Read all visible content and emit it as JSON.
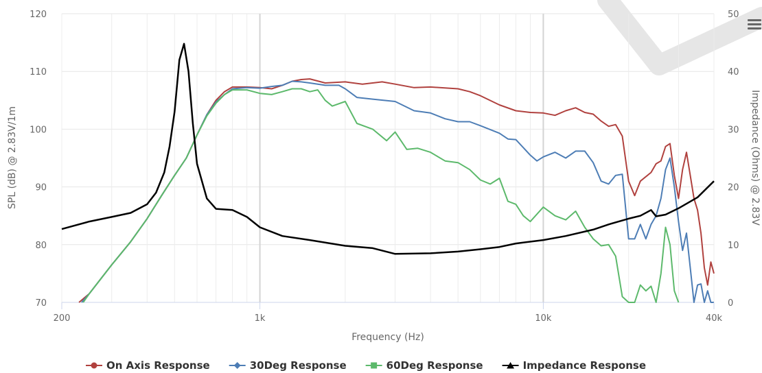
{
  "chart_data": {
    "type": "line",
    "xlabel": "Frequency (Hz)",
    "ylabel": "SPL (dB) @ 2.83V/1m",
    "y2label": "Impedance (Ohms) @ 2.83V",
    "x_scale": "log",
    "xlim": [
      200,
      40000
    ],
    "ylim": [
      70,
      120
    ],
    "y2lim": [
      0,
      50
    ],
    "x_ticks": [
      {
        "value": 200,
        "label": "200"
      },
      {
        "value": 1000,
        "label": "1k"
      },
      {
        "value": 10000,
        "label": "10k"
      },
      {
        "value": 40000,
        "label": "40k"
      }
    ],
    "y_ticks": [
      {
        "value": 70,
        "label": "70"
      },
      {
        "value": 80,
        "label": "80"
      },
      {
        "value": 90,
        "label": "90"
      },
      {
        "value": 100,
        "label": "100"
      },
      {
        "value": 110,
        "label": "110"
      },
      {
        "value": 120,
        "label": "120"
      }
    ],
    "y2_ticks": [
      {
        "value": 0,
        "label": "0"
      },
      {
        "value": 10,
        "label": "10"
      },
      {
        "value": 20,
        "label": "20"
      },
      {
        "value": 30,
        "label": "30"
      },
      {
        "value": 40,
        "label": "40"
      },
      {
        "value": 50,
        "label": "50"
      }
    ],
    "grid": true,
    "legend_position": "bottom-center",
    "series": [
      {
        "name": "On Axis Response",
        "color": "#b0413e",
        "axis": "left",
        "marker": "circle",
        "points": [
          [
            230,
            70
          ],
          [
            250,
            71.5
          ],
          [
            300,
            76.5
          ],
          [
            350,
            80.5
          ],
          [
            400,
            84.5
          ],
          [
            450,
            88.5
          ],
          [
            500,
            92
          ],
          [
            550,
            95
          ],
          [
            600,
            99
          ],
          [
            650,
            102.5
          ],
          [
            700,
            105
          ],
          [
            750,
            106.5
          ],
          [
            800,
            107.3
          ],
          [
            900,
            107.3
          ],
          [
            1000,
            107.2
          ],
          [
            1100,
            107
          ],
          [
            1200,
            107.6
          ],
          [
            1300,
            108.3
          ],
          [
            1400,
            108.6
          ],
          [
            1500,
            108.7
          ],
          [
            1700,
            108
          ],
          [
            2000,
            108.2
          ],
          [
            2300,
            107.8
          ],
          [
            2700,
            108.2
          ],
          [
            3000,
            107.8
          ],
          [
            3500,
            107.2
          ],
          [
            4000,
            107.3
          ],
          [
            5000,
            107
          ],
          [
            5500,
            106.5
          ],
          [
            6000,
            105.8
          ],
          [
            7000,
            104.2
          ],
          [
            8000,
            103.2
          ],
          [
            9000,
            102.9
          ],
          [
            10000,
            102.8
          ],
          [
            11000,
            102.4
          ],
          [
            12000,
            103.2
          ],
          [
            13000,
            103.7
          ],
          [
            14000,
            102.9
          ],
          [
            15000,
            102.6
          ],
          [
            16000,
            101.4
          ],
          [
            17000,
            100.5
          ],
          [
            18000,
            100.8
          ],
          [
            19000,
            98.8
          ],
          [
            20000,
            91
          ],
          [
            21000,
            88.5
          ],
          [
            22000,
            91
          ],
          [
            24000,
            92.5
          ],
          [
            25000,
            94
          ],
          [
            26000,
            94.5
          ],
          [
            27000,
            97
          ],
          [
            28000,
            97.5
          ],
          [
            29000,
            92
          ],
          [
            30000,
            88
          ],
          [
            31000,
            93
          ],
          [
            32000,
            96
          ],
          [
            33000,
            92
          ],
          [
            34000,
            88
          ],
          [
            35000,
            86
          ],
          [
            36000,
            82
          ],
          [
            37000,
            76
          ],
          [
            38000,
            73
          ],
          [
            39000,
            77
          ],
          [
            40000,
            75
          ]
        ]
      },
      {
        "name": "30Deg Response",
        "color": "#4d7db5",
        "axis": "left",
        "marker": "diamond",
        "points": [
          [
            235,
            70
          ],
          [
            250,
            71.5
          ],
          [
            300,
            76.5
          ],
          [
            350,
            80.5
          ],
          [
            400,
            84.5
          ],
          [
            450,
            88.5
          ],
          [
            500,
            92
          ],
          [
            550,
            95
          ],
          [
            600,
            99
          ],
          [
            650,
            102.5
          ],
          [
            700,
            104.7
          ],
          [
            750,
            106
          ],
          [
            800,
            107
          ],
          [
            900,
            107.2
          ],
          [
            1000,
            107.1
          ],
          [
            1100,
            107.4
          ],
          [
            1200,
            107.6
          ],
          [
            1300,
            108.3
          ],
          [
            1400,
            108.2
          ],
          [
            1500,
            108
          ],
          [
            1700,
            107.6
          ],
          [
            1900,
            107.6
          ],
          [
            2000,
            107
          ],
          [
            2200,
            105.5
          ],
          [
            2500,
            105.2
          ],
          [
            3000,
            104.8
          ],
          [
            3500,
            103.2
          ],
          [
            4000,
            102.8
          ],
          [
            4500,
            101.8
          ],
          [
            5000,
            101.3
          ],
          [
            5500,
            101.3
          ],
          [
            6000,
            100.6
          ],
          [
            7000,
            99.3
          ],
          [
            7500,
            98.3
          ],
          [
            8000,
            98.2
          ],
          [
            9000,
            95.5
          ],
          [
            9500,
            94.5
          ],
          [
            10000,
            95.2
          ],
          [
            11000,
            96
          ],
          [
            12000,
            95
          ],
          [
            13000,
            96.2
          ],
          [
            14000,
            96.2
          ],
          [
            15000,
            94.2
          ],
          [
            16000,
            91
          ],
          [
            17000,
            90.5
          ],
          [
            18000,
            92
          ],
          [
            19000,
            92.2
          ],
          [
            20000,
            81
          ],
          [
            21000,
            81
          ],
          [
            22000,
            83.5
          ],
          [
            23000,
            81
          ],
          [
            24000,
            83.5
          ],
          [
            25000,
            85
          ],
          [
            26000,
            88
          ],
          [
            27000,
            93
          ],
          [
            28000,
            95
          ],
          [
            29000,
            90
          ],
          [
            30000,
            84
          ],
          [
            31000,
            79
          ],
          [
            32000,
            82
          ],
          [
            33000,
            76
          ],
          [
            34000,
            70
          ],
          [
            35000,
            73
          ],
          [
            36000,
            73.2
          ],
          [
            37000,
            70
          ],
          [
            38000,
            72
          ],
          [
            39000,
            70
          ],
          [
            40000,
            70
          ]
        ]
      },
      {
        "name": "60Deg Response",
        "color": "#5cb96b",
        "axis": "left",
        "marker": "square",
        "points": [
          [
            238,
            70
          ],
          [
            250,
            71.5
          ],
          [
            300,
            76.5
          ],
          [
            350,
            80.5
          ],
          [
            400,
            84.5
          ],
          [
            450,
            88.5
          ],
          [
            500,
            92
          ],
          [
            550,
            95
          ],
          [
            600,
            99
          ],
          [
            650,
            102.3
          ],
          [
            700,
            104.5
          ],
          [
            750,
            106
          ],
          [
            800,
            106.8
          ],
          [
            900,
            106.8
          ],
          [
            1000,
            106.2
          ],
          [
            1100,
            106
          ],
          [
            1200,
            106.5
          ],
          [
            1300,
            107
          ],
          [
            1400,
            107
          ],
          [
            1500,
            106.5
          ],
          [
            1600,
            106.8
          ],
          [
            1700,
            105
          ],
          [
            1800,
            104
          ],
          [
            2000,
            104.8
          ],
          [
            2200,
            101
          ],
          [
            2500,
            100
          ],
          [
            2800,
            98
          ],
          [
            3000,
            99.5
          ],
          [
            3300,
            96.5
          ],
          [
            3600,
            96.7
          ],
          [
            4000,
            96
          ],
          [
            4500,
            94.5
          ],
          [
            5000,
            94.2
          ],
          [
            5500,
            93
          ],
          [
            6000,
            91.2
          ],
          [
            6500,
            90.5
          ],
          [
            7000,
            91.5
          ],
          [
            7500,
            87.5
          ],
          [
            8000,
            87
          ],
          [
            8500,
            85
          ],
          [
            9000,
            84
          ],
          [
            10000,
            86.5
          ],
          [
            11000,
            85
          ],
          [
            12000,
            84.3
          ],
          [
            13000,
            85.8
          ],
          [
            14000,
            83
          ],
          [
            15000,
            81
          ],
          [
            16000,
            79.8
          ],
          [
            17000,
            80
          ],
          [
            18000,
            78
          ],
          [
            19000,
            71
          ],
          [
            20000,
            70
          ],
          [
            21000,
            70
          ],
          [
            22000,
            73
          ],
          [
            23000,
            72
          ],
          [
            24000,
            72.8
          ],
          [
            25000,
            70
          ],
          [
            26000,
            75
          ],
          [
            27000,
            83
          ],
          [
            28000,
            80
          ],
          [
            29000,
            72
          ],
          [
            30000,
            70
          ]
        ]
      },
      {
        "name": "Impedance Response",
        "color": "#000000",
        "axis": "right",
        "marker": "triangle",
        "points": [
          [
            200,
            12.7
          ],
          [
            250,
            14
          ],
          [
            300,
            14.8
          ],
          [
            350,
            15.5
          ],
          [
            400,
            17
          ],
          [
            430,
            19
          ],
          [
            460,
            22.5
          ],
          [
            480,
            27
          ],
          [
            500,
            33
          ],
          [
            520,
            42
          ],
          [
            540,
            44.8
          ],
          [
            560,
            40
          ],
          [
            580,
            31
          ],
          [
            600,
            24
          ],
          [
            650,
            18
          ],
          [
            700,
            16.2
          ],
          [
            800,
            16
          ],
          [
            900,
            14.8
          ],
          [
            1000,
            13
          ],
          [
            1200,
            11.5
          ],
          [
            1500,
            10.8
          ],
          [
            2000,
            9.8
          ],
          [
            2500,
            9.4
          ],
          [
            3000,
            8.4
          ],
          [
            4000,
            8.5
          ],
          [
            5000,
            8.8
          ],
          [
            6000,
            9.2
          ],
          [
            7000,
            9.6
          ],
          [
            8000,
            10.2
          ],
          [
            10000,
            10.8
          ],
          [
            12000,
            11.5
          ],
          [
            15000,
            12.6
          ],
          [
            17000,
            13.5
          ],
          [
            20000,
            14.5
          ],
          [
            22000,
            15
          ],
          [
            24000,
            16
          ],
          [
            25000,
            14.9
          ],
          [
            27000,
            15.2
          ],
          [
            30000,
            16.3
          ],
          [
            35000,
            18.2
          ],
          [
            40000,
            21
          ]
        ]
      }
    ]
  }
}
